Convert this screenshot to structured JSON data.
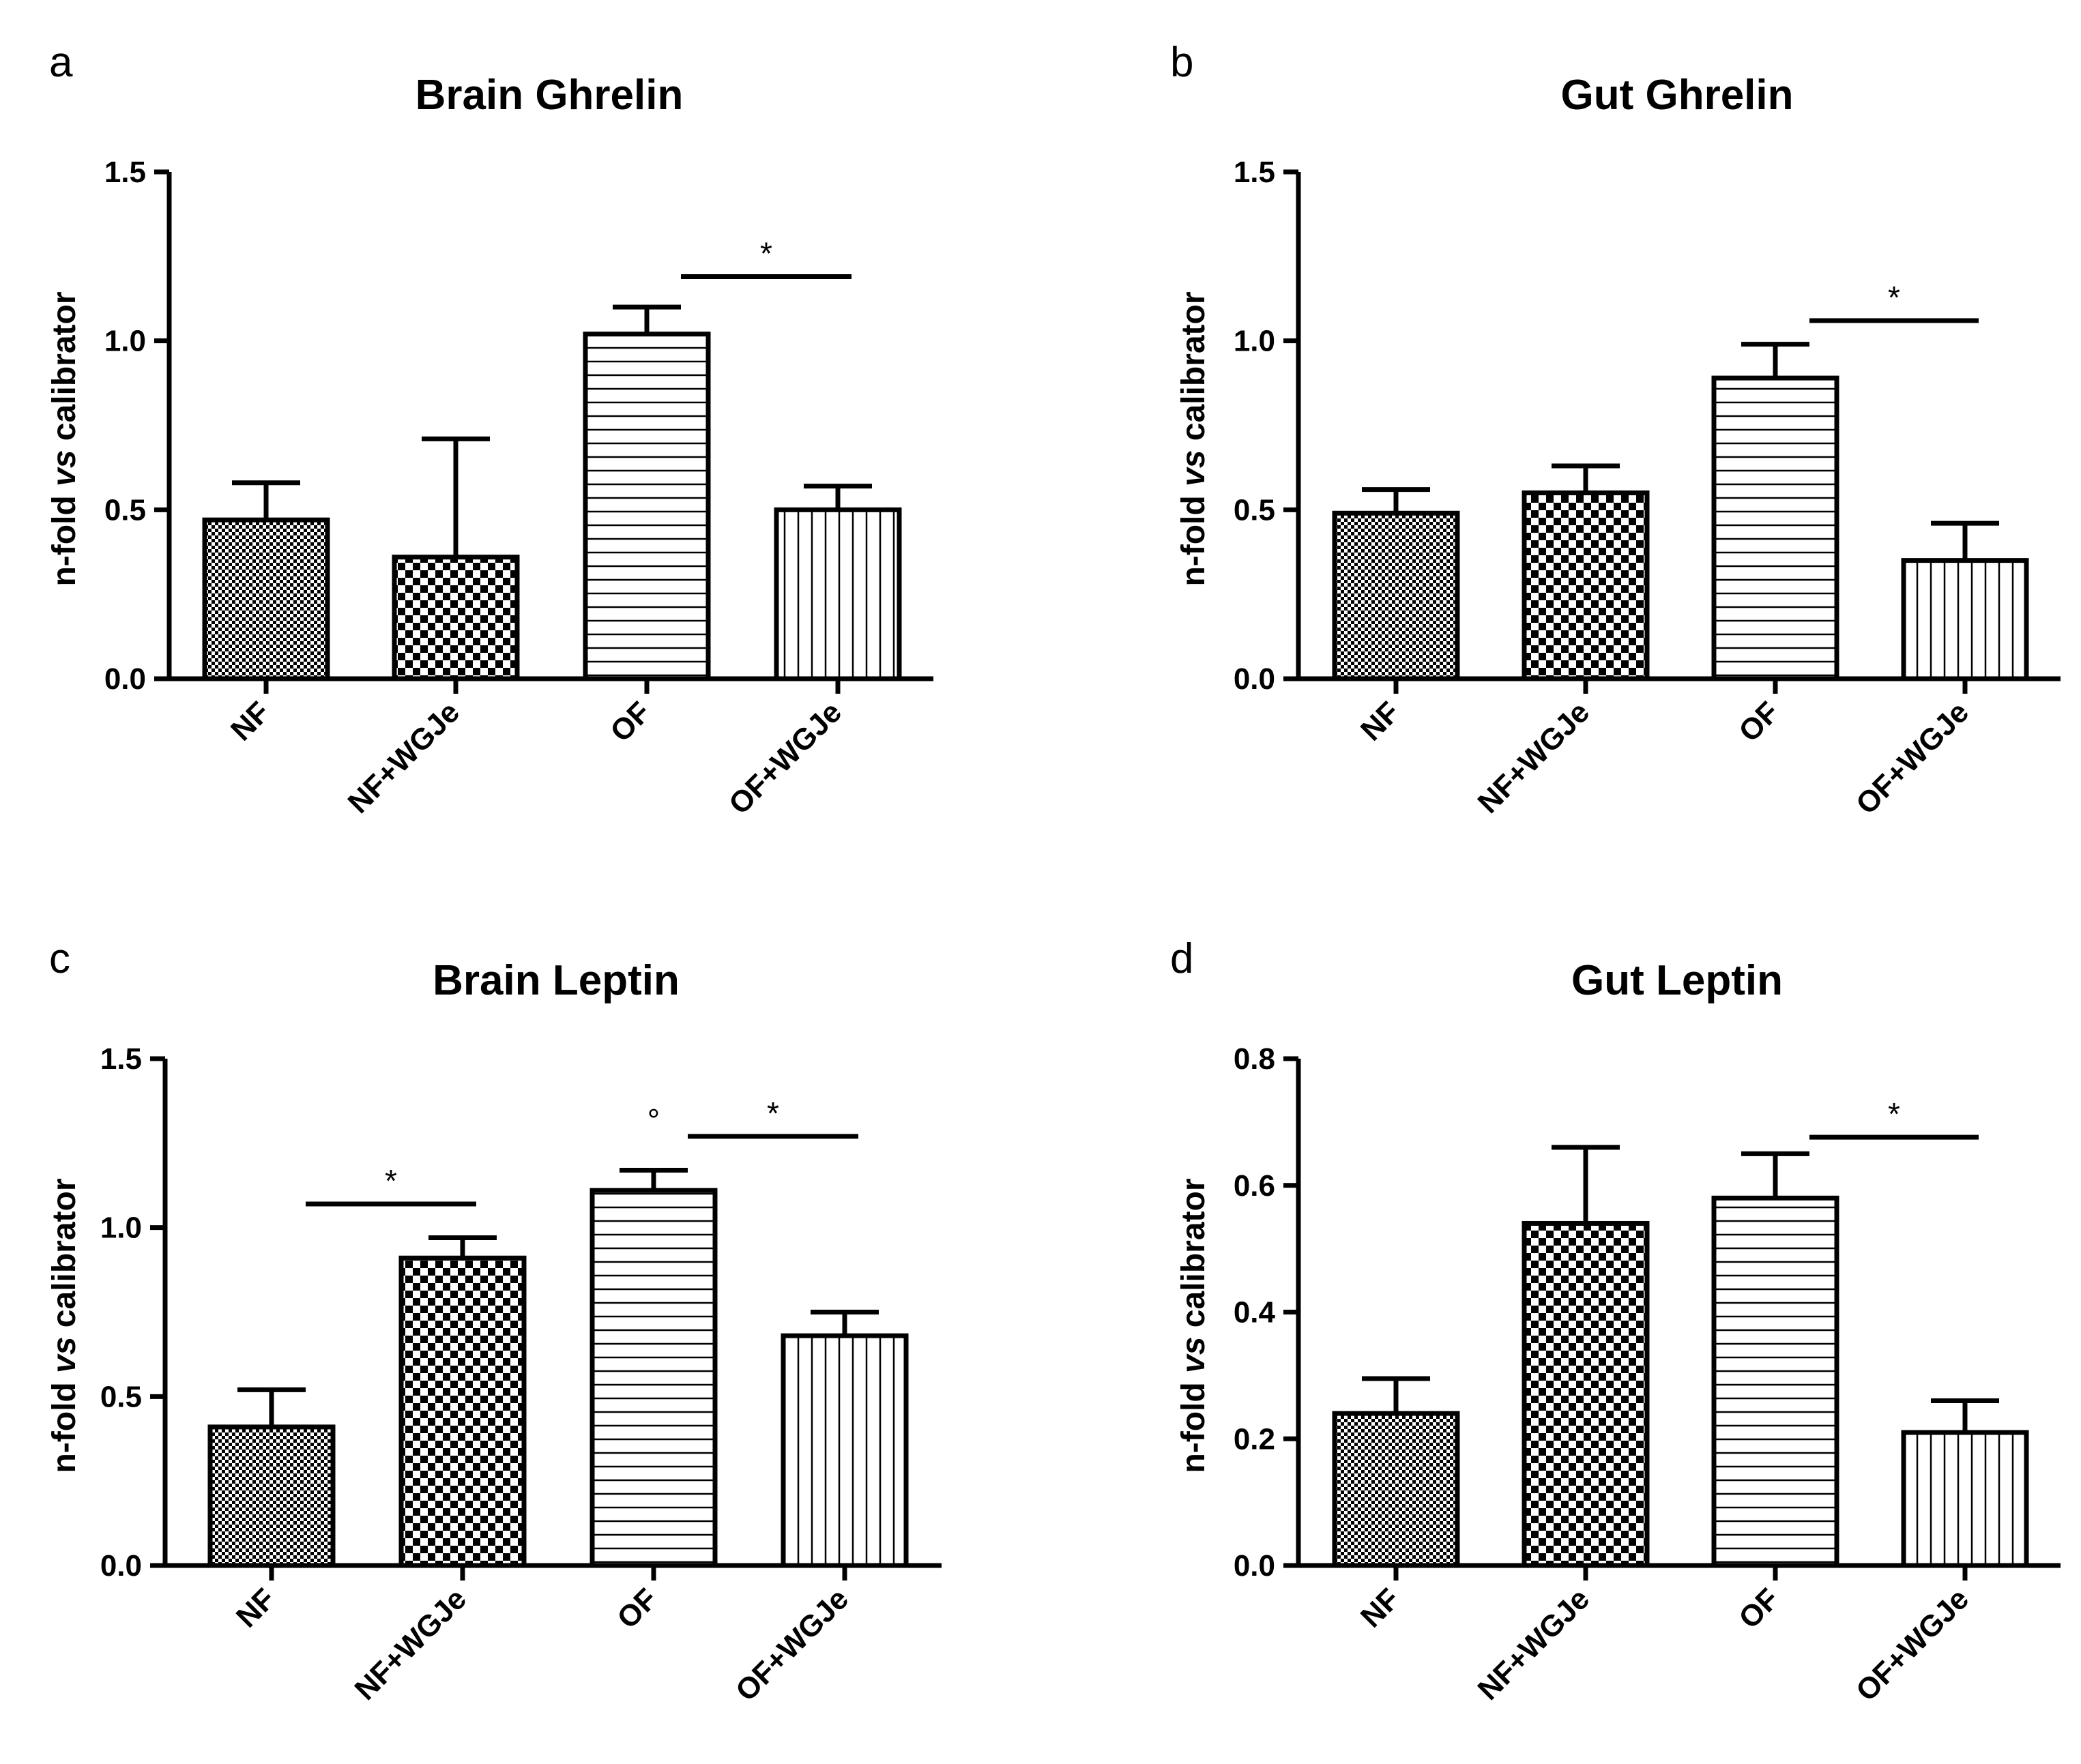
{
  "figure": {
    "panels": [
      "a",
      "b",
      "c",
      "d"
    ]
  },
  "colors": {
    "ink": "#000000",
    "background": "#ffffff"
  },
  "chart_data": [
    {
      "panel": "a",
      "type": "bar",
      "title": "Brain Ghrelin",
      "xlabel": "",
      "ylabel_parts": [
        "n-fold ",
        "vs",
        " calibrator"
      ],
      "ylim": [
        0,
        1.5
      ],
      "yticks": [
        "0.0",
        "0.5",
        "1.0",
        "1.5"
      ],
      "ytick_values": [
        0,
        0.5,
        1.0,
        1.5
      ],
      "categories": [
        "NF",
        "NF+WGJe",
        "OF",
        "OF+WGJe"
      ],
      "patterns": [
        "fine-check",
        "check",
        "horizontal",
        "vertical"
      ],
      "values": [
        0.47,
        0.36,
        1.02,
        0.5
      ],
      "errors": [
        0.11,
        0.35,
        0.08,
        0.07
      ],
      "significance": [
        {
          "from": 2,
          "to": 3,
          "label": "*",
          "y": 1.19
        }
      ],
      "markers": []
    },
    {
      "panel": "b",
      "type": "bar",
      "title": "Gut Ghrelin",
      "xlabel": "",
      "ylabel_parts": [
        "n-fold ",
        "vs",
        " calibrator"
      ],
      "ylim": [
        0,
        1.5
      ],
      "yticks": [
        "0.0",
        "0.5",
        "1.0",
        "1.5"
      ],
      "ytick_values": [
        0,
        0.5,
        1.0,
        1.5
      ],
      "categories": [
        "NF",
        "NF+WGJe",
        "OF",
        "OF+WGJe"
      ],
      "patterns": [
        "fine-check",
        "check",
        "horizontal",
        "vertical"
      ],
      "values": [
        0.49,
        0.55,
        0.89,
        0.35
      ],
      "errors": [
        0.07,
        0.08,
        0.1,
        0.11
      ],
      "significance": [
        {
          "from": 2,
          "to": 3,
          "label": "*",
          "y": 1.06
        }
      ],
      "markers": []
    },
    {
      "panel": "c",
      "type": "bar",
      "title": "Brain Leptin",
      "xlabel": "",
      "ylabel_parts": [
        "n-fold ",
        "vs",
        " calibrator"
      ],
      "ylim": [
        0,
        1.5
      ],
      "yticks": [
        "0.0",
        "0.5",
        "1.0",
        "1.5"
      ],
      "ytick_values": [
        0,
        0.5,
        1.0,
        1.5
      ],
      "categories": [
        "NF",
        "NF+WGJe",
        "OF",
        "OF+WGJe"
      ],
      "patterns": [
        "fine-check",
        "check",
        "horizontal",
        "vertical"
      ],
      "values": [
        0.41,
        0.91,
        1.11,
        0.68
      ],
      "errors": [
        0.11,
        0.06,
        0.06,
        0.07
      ],
      "significance": [
        {
          "from": 0,
          "to": 1,
          "label": "*",
          "y": 1.07
        },
        {
          "from": 2,
          "to": 3,
          "label": "*",
          "y": 1.27
        }
      ],
      "markers": [
        {
          "label": "°",
          "category": 2,
          "y": 1.33
        }
      ]
    },
    {
      "panel": "d",
      "type": "bar",
      "title": "Gut Leptin",
      "xlabel": "",
      "ylabel_parts": [
        "n-fold ",
        "vs",
        " calibrator"
      ],
      "ylim": [
        0,
        0.8
      ],
      "yticks": [
        "0.0",
        "0.2",
        "0.4",
        "0.6",
        "0.8"
      ],
      "ytick_values": [
        0,
        0.2,
        0.4,
        0.6,
        0.8
      ],
      "categories": [
        "NF",
        "NF+WGJe",
        "OF",
        "OF+WGJe"
      ],
      "patterns": [
        "fine-check",
        "check",
        "horizontal",
        "vertical"
      ],
      "values": [
        0.24,
        0.54,
        0.58,
        0.21
      ],
      "errors": [
        0.055,
        0.12,
        0.07,
        0.05
      ],
      "significance": [
        {
          "from": 2,
          "to": 3,
          "label": "*",
          "y": 0.676
        }
      ],
      "markers": []
    }
  ]
}
